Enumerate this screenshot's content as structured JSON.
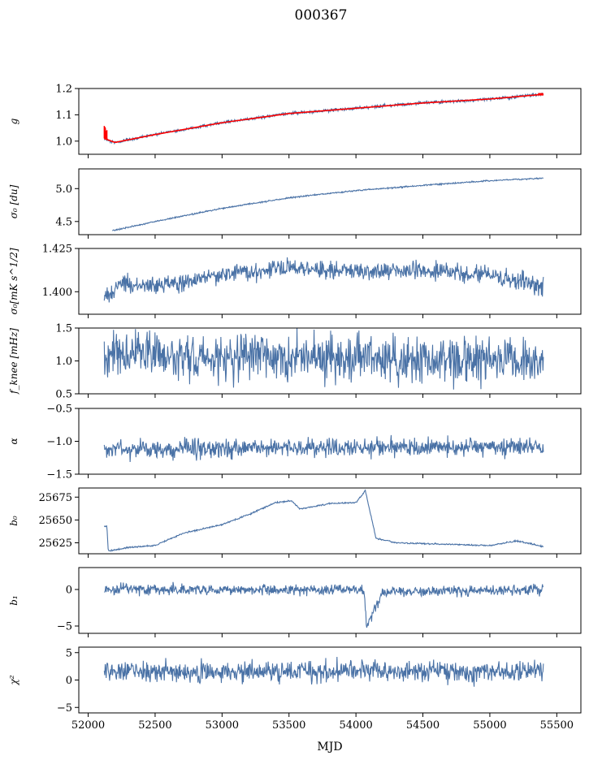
{
  "figure": {
    "title": "000367"
  },
  "colors": {
    "series": "#4a72a6",
    "overlay": "#ff0000",
    "axis": "#000000"
  },
  "chart_data": {
    "type": "line",
    "shared_x": {
      "xlabel": "MJD",
      "xlim": [
        51930,
        55680
      ],
      "ticks": [
        52000,
        52500,
        53000,
        53500,
        54000,
        54500,
        55000,
        55500
      ],
      "tick_labels": [
        "52000",
        "52500",
        "53000",
        "53500",
        "54000",
        "54500",
        "55000",
        "55500"
      ],
      "data_range": [
        52120,
        55400
      ]
    },
    "panels": [
      {
        "id": "g",
        "ylabel": "g",
        "ylim": [
          0.95,
          1.2
        ],
        "ticks": [
          1.0,
          1.1,
          1.2
        ],
        "tick_labels": [
          "1.0",
          "1.1",
          "1.2"
        ],
        "trend": [
          [
            52120,
            1.01
          ],
          [
            52200,
            0.995
          ],
          [
            52500,
            1.025
          ],
          [
            53000,
            1.07
          ],
          [
            53500,
            1.105
          ],
          [
            54000,
            1.125
          ],
          [
            54500,
            1.145
          ],
          [
            55000,
            1.16
          ],
          [
            55400,
            1.178
          ]
        ],
        "noise": 0.003,
        "overlay": {
          "label": "red overlay",
          "spike": [
            52120,
            52140,
            1.06
          ]
        }
      },
      {
        "id": "sigma0",
        "ylabel": "σ₀ [du]",
        "ylim": [
          4.3,
          5.3
        ],
        "ticks": [
          4.5,
          5.0
        ],
        "tick_labels": [
          "4.5",
          "5.0"
        ],
        "trend": [
          [
            52180,
            4.36
          ],
          [
            52500,
            4.5
          ],
          [
            53000,
            4.7
          ],
          [
            53500,
            4.86
          ],
          [
            54000,
            4.97
          ],
          [
            54500,
            5.05
          ],
          [
            55000,
            5.12
          ],
          [
            55400,
            5.16
          ]
        ],
        "noise": 0.005
      },
      {
        "id": "sigma0-mks",
        "ylabel": "σ₀[mK s^1/2]",
        "ylim": [
          1.387,
          1.425
        ],
        "ticks": [
          1.4,
          1.425
        ],
        "tick_labels": [
          "1.400",
          "1.425"
        ],
        "trend": [
          [
            52120,
            1.396
          ],
          [
            52250,
            1.405
          ],
          [
            52500,
            1.403
          ],
          [
            53000,
            1.41
          ],
          [
            53500,
            1.414
          ],
          [
            54000,
            1.412
          ],
          [
            54500,
            1.412
          ],
          [
            55000,
            1.41
          ],
          [
            55400,
            1.403
          ]
        ],
        "noise": 0.0025
      },
      {
        "id": "fknee",
        "ylabel": "f_knee [mHz]",
        "ylim": [
          0.5,
          1.5
        ],
        "ticks": [
          0.5,
          1.0,
          1.5
        ],
        "tick_labels": [
          "0.5",
          "1.0",
          "1.5"
        ],
        "trend": [
          [
            52120,
            1.15
          ],
          [
            53000,
            1.05
          ],
          [
            54000,
            1.05
          ],
          [
            55400,
            1.0
          ]
        ],
        "noise": 0.17
      },
      {
        "id": "alpha",
        "ylabel": "α",
        "ylim": [
          -1.5,
          -0.5
        ],
        "ticks": [
          -1.5,
          -1.0,
          -0.5
        ],
        "tick_labels": [
          "−1.5",
          "−1.0",
          "−0.5"
        ],
        "trend": [
          [
            52120,
            -1.12
          ],
          [
            55400,
            -1.08
          ]
        ],
        "noise": 0.07
      },
      {
        "id": "b0",
        "ylabel": "b₀",
        "ylim": [
          25613,
          25685
        ],
        "ticks": [
          25625,
          25650,
          25675
        ],
        "tick_labels": [
          "25625",
          "25650",
          "25675"
        ],
        "trend": [
          [
            52120,
            25643
          ],
          [
            52140,
            25643
          ],
          [
            52150,
            25616
          ],
          [
            52300,
            25620
          ],
          [
            52500,
            25622
          ],
          [
            52700,
            25635
          ],
          [
            53000,
            25645
          ],
          [
            53200,
            25656
          ],
          [
            53400,
            25669
          ],
          [
            53520,
            25671
          ],
          [
            53580,
            25662
          ],
          [
            53800,
            25668
          ],
          [
            54000,
            25669
          ],
          [
            54070,
            25682
          ],
          [
            54150,
            25630
          ],
          [
            54300,
            25625
          ],
          [
            55000,
            25622
          ],
          [
            55200,
            25627
          ],
          [
            55400,
            25621
          ]
        ],
        "noise": 0.4
      },
      {
        "id": "b1",
        "ylabel": "b₁",
        "ylim": [
          -6,
          3
        ],
        "ticks": [
          -5,
          0
        ],
        "tick_labels": [
          "−5",
          "0"
        ],
        "trend": [
          [
            52120,
            0
          ],
          [
            54060,
            0
          ],
          [
            54080,
            -5.2
          ],
          [
            54200,
            -0.3
          ],
          [
            55400,
            0
          ]
        ],
        "noise": 0.35
      },
      {
        "id": "chi2",
        "ylabel": "χ²",
        "ylim": [
          -6,
          6
        ],
        "ticks": [
          -5,
          0,
          5
        ],
        "tick_labels": [
          "−5",
          "0",
          "5"
        ],
        "trend": [
          [
            52120,
            1.5
          ],
          [
            55400,
            1.6
          ]
        ],
        "noise": 0.9
      }
    ]
  }
}
